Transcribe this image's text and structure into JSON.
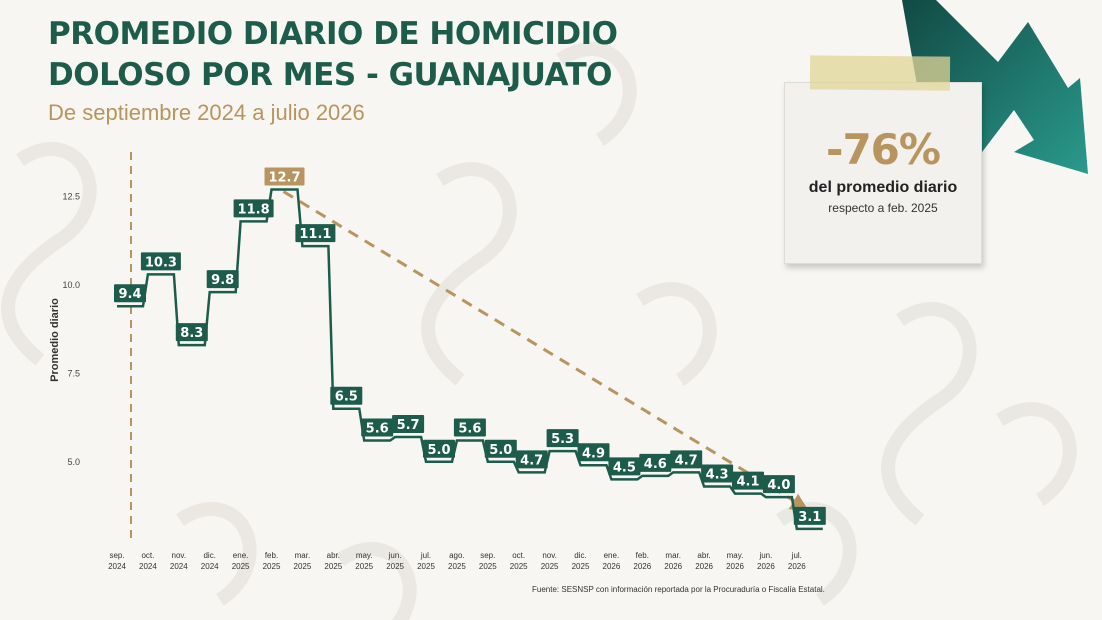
{
  "header": {
    "title_line1": "PROMEDIO DIARIO DE HOMICIDIO",
    "title_line2": "DOLOSO POR MES - GUANAJUATO",
    "subtitle": "De septiembre 2024 a julio 2026"
  },
  "callout": {
    "value": "-76%",
    "line1": "del promedio diario",
    "line2": "respecto a feb. 2025"
  },
  "source": "Fuente: SESNSP con información reportada por la Procuraduría o Fiscalía Estatal.",
  "colors": {
    "primary": "#1d5c4b",
    "accent": "#b8955e",
    "arrow": "#1d6b62",
    "background": "#f7f6f3"
  },
  "chart_data": {
    "type": "line",
    "style": "step",
    "title": "PROMEDIO DIARIO DE HOMICIDIO DOLOSO POR MES - GUANAJUATO",
    "subtitle": "De septiembre 2024 a julio 2026",
    "ylabel": "Promedio diario",
    "xlabel": "",
    "ylim": [
      2.5,
      13.5
    ],
    "yticks": [
      5.0,
      7.5,
      10.0,
      12.5
    ],
    "ytick_labels": [
      "5.0",
      "7.5",
      "10.0",
      "12.5"
    ],
    "grid": false,
    "categories": [
      [
        "sep.",
        "2024"
      ],
      [
        "oct.",
        "2024"
      ],
      [
        "nov.",
        "2024"
      ],
      [
        "dic.",
        "2024"
      ],
      [
        "ene.",
        "2025"
      ],
      [
        "feb.",
        "2025"
      ],
      [
        "mar.",
        "2025"
      ],
      [
        "abr.",
        "2025"
      ],
      [
        "may.",
        "2025"
      ],
      [
        "jun.",
        "2025"
      ],
      [
        "jul.",
        "2025"
      ],
      [
        "ago.",
        "2025"
      ],
      [
        "sep.",
        "2025"
      ],
      [
        "oct.",
        "2025"
      ],
      [
        "nov.",
        "2025"
      ],
      [
        "dic.",
        "2025"
      ],
      [
        "ene.",
        "2026"
      ],
      [
        "feb.",
        "2026"
      ],
      [
        "mar.",
        "2026"
      ],
      [
        "abr.",
        "2026"
      ],
      [
        "may.",
        "2026"
      ],
      [
        "jun.",
        "2026"
      ],
      [
        "jul.",
        "2026"
      ]
    ],
    "values": [
      9.4,
      10.3,
      8.3,
      9.8,
      11.8,
      12.7,
      11.1,
      6.5,
      5.6,
      5.7,
      5.0,
      5.6,
      5.0,
      4.7,
      5.3,
      4.9,
      4.5,
      4.6,
      4.7,
      4.3,
      4.1,
      4.0,
      3.1
    ],
    "value_labels": [
      "9.4",
      "10.3",
      "8.3",
      "9.8",
      "11.8",
      "12.7",
      "11.1",
      "6.5",
      "5.6",
      "5.7",
      "5.0",
      "5.6",
      "5.0",
      "4.7",
      "5.3",
      "4.9",
      "4.5",
      "4.6",
      "4.7",
      "4.3",
      "4.1",
      "4.0",
      "3.1"
    ],
    "highlight_index": 5,
    "trend_from_index": 5,
    "trend_to_index": 22,
    "reference_line_index": 0
  }
}
